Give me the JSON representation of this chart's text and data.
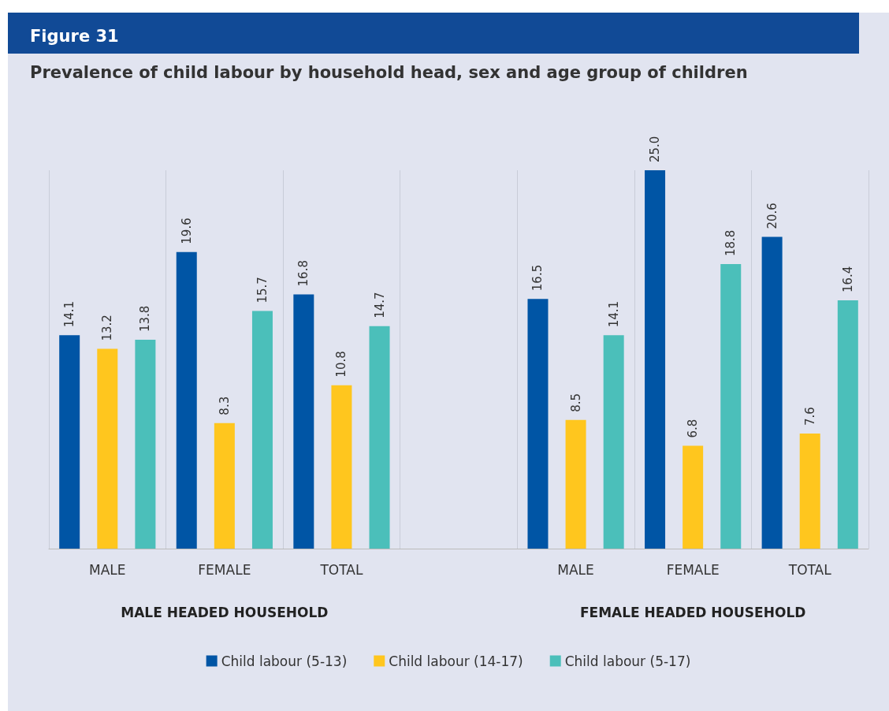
{
  "chart_data": {
    "type": "bar",
    "title": "Figure 31",
    "subtitle": "Prevalence of child labour by household head, sex and age group of children",
    "categories": [
      "MALE",
      "FEMALE",
      "TOTAL",
      null,
      "MALE",
      "FEMALE",
      "TOTAL"
    ],
    "series": [
      {
        "name": "Child labour (5-13)",
        "color": "#0055a5",
        "values": [
          14.1,
          19.6,
          16.8,
          null,
          16.5,
          25.0,
          20.6
        ],
        "value_labels": [
          "14.1",
          "19.6",
          "16.8",
          null,
          "16.5",
          "25.0",
          "20.6"
        ]
      },
      {
        "name": "Child labour (14-17)",
        "color": "#ffc61e",
        "values": [
          13.2,
          8.3,
          10.8,
          null,
          8.5,
          6.8,
          7.6
        ],
        "value_labels": [
          "13.2",
          "8.3",
          "10.8",
          null,
          "8.5",
          "6.8",
          "7.6"
        ]
      },
      {
        "name": "Child labour (5-17)",
        "color": "#4bbfba",
        "values": [
          13.8,
          15.7,
          14.7,
          null,
          14.1,
          18.8,
          16.4
        ],
        "value_labels": [
          "13.8",
          "15.7",
          "14.7",
          null,
          "14.1",
          "18.8",
          "16.4"
        ]
      }
    ],
    "annotations": [
      "MALE HEADED HOUSEHOLD",
      "FEMALE HEADED HOUSEHOLD"
    ],
    "grid": "x",
    "legend": "bottom"
  }
}
